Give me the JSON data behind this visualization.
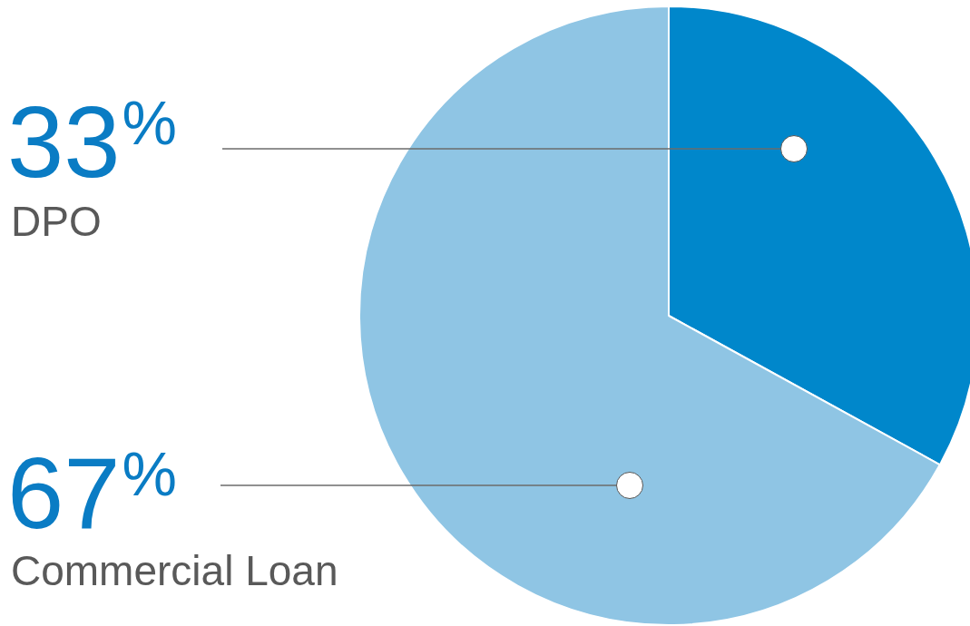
{
  "chart_data": {
    "type": "pie",
    "categories": [
      "DPO",
      "Commercial Loan"
    ],
    "values": [
      33,
      67
    ],
    "colors": [
      "#0087cb",
      "#8fc5e4"
    ],
    "value_labels": [
      "33%",
      "67%"
    ],
    "legend": false
  }
}
